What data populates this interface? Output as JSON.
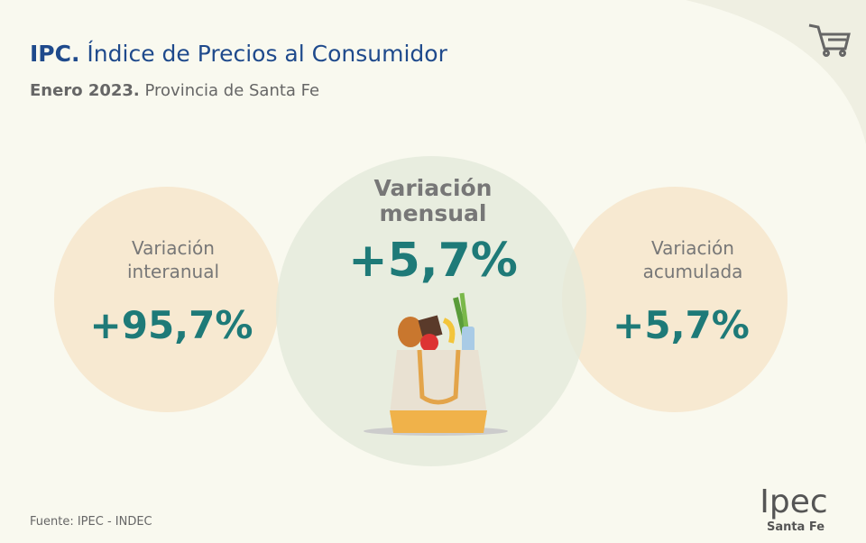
{
  "header": {
    "title_bold": "IPC.",
    "title": "Índice de Precios al Consumidor",
    "subtitle_bold": "Enero 2023.",
    "subtitle": "Provincia de Santa Fe"
  },
  "indicators": [
    {
      "label_lines": [
        "Variación",
        "interanual"
      ],
      "value": "+95,7%"
    },
    {
      "label_lines": [
        "Variación",
        "mensual"
      ],
      "value": "+5,7%"
    },
    {
      "label_lines": [
        "Variación",
        "acumulada"
      ],
      "value": "+5,7%"
    }
  ],
  "footer": {
    "source": "Fuente: IPEC - INDEC",
    "logo": "Ipec",
    "logo_sub": "Santa Fe"
  }
}
